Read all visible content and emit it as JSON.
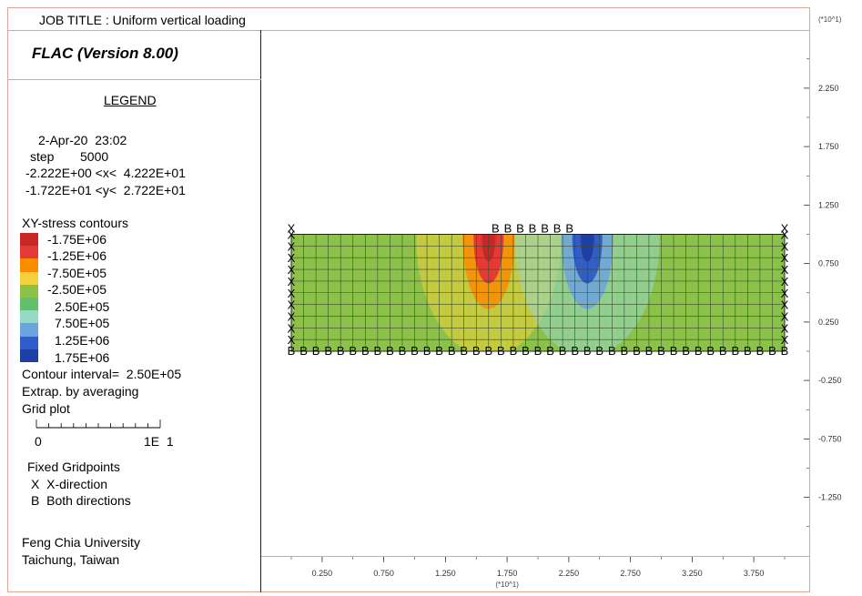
{
  "header": {
    "job_title": "JOB TITLE : Uniform vertical loading",
    "program": "FLAC (Version 8.00)",
    "scale_note": "(*10^1)"
  },
  "legend": {
    "title": "LEGEND",
    "date": "2-Apr-20  23:02",
    "step_label": "step",
    "step_value": "5000",
    "x_range": "-2.222E+00 <x<  4.222E+01",
    "y_range": "-1.722E+01 <y<  2.722E+01",
    "contour_title": "XY-stress contours",
    "contour_levels": [
      "-1.75E+06",
      "-1.25E+06",
      "-7.50E+05",
      "-2.50E+05",
      "2.50E+05",
      "7.50E+05",
      "1.25E+06",
      "1.75E+06"
    ],
    "contour_colors": [
      "#c62828",
      "#e53935",
      "#fb8c00",
      "#f2d23a",
      "#8bc34a",
      "#62c06b",
      "#97d9c9",
      "#6ba4e0",
      "#2f5ec7",
      "#1f3fa8"
    ],
    "contour_interval": "Contour interval=  2.50E+05",
    "extrap": "Extrap. by averaging",
    "grid_plot": "Grid plot",
    "scale_zero": "0",
    "scale_end": "1E  1",
    "fixed_title": "Fixed Gridpoints",
    "fixed_x": "X  X-direction",
    "fixed_b": "B  Both directions",
    "org_line1": "Feng Chia University",
    "org_line2": "Taichung, Taiwan"
  },
  "chart_data": {
    "type": "heatmap",
    "x_scale_label": "(*10^1)",
    "y_scale_label": "(*10^1)",
    "x_ticks": [
      "0.250",
      "0.750",
      "1.250",
      "1.750",
      "2.250",
      "2.750",
      "3.250",
      "3.750"
    ],
    "x_tick_values": [
      0.25,
      0.75,
      1.25,
      1.75,
      2.25,
      2.75,
      3.25,
      3.75
    ],
    "y_ticks": [
      "2.250",
      "1.750",
      "1.250",
      "0.750",
      "0.250",
      "-0.250",
      "-0.750",
      "-1.250"
    ],
    "y_tick_values": [
      2.25,
      1.75,
      1.25,
      0.75,
      0.25,
      -0.25,
      -0.75,
      -1.25
    ],
    "xlim": [
      -0.2222,
      4.222
    ],
    "ylim": [
      -1.722,
      2.722
    ],
    "mesh": {
      "x_range": [
        0,
        40
      ],
      "y_range": [
        0,
        10
      ],
      "columns": 40,
      "rows": 10
    },
    "background_stress": "-2.50E+05 to 2.50E+05",
    "stress_concentrations": [
      {
        "label": "-1.75E+06",
        "x": 16.0,
        "y": 10.0,
        "sign": "negative"
      },
      {
        "label": "1.75E+06",
        "x": 24.0,
        "y": 10.0,
        "sign": "positive"
      }
    ],
    "fixed_markers": {
      "top_B_x": [
        17,
        18,
        19,
        20,
        21,
        22,
        23
      ],
      "x_sides": [
        0,
        40
      ],
      "bottom_B": "all"
    }
  }
}
